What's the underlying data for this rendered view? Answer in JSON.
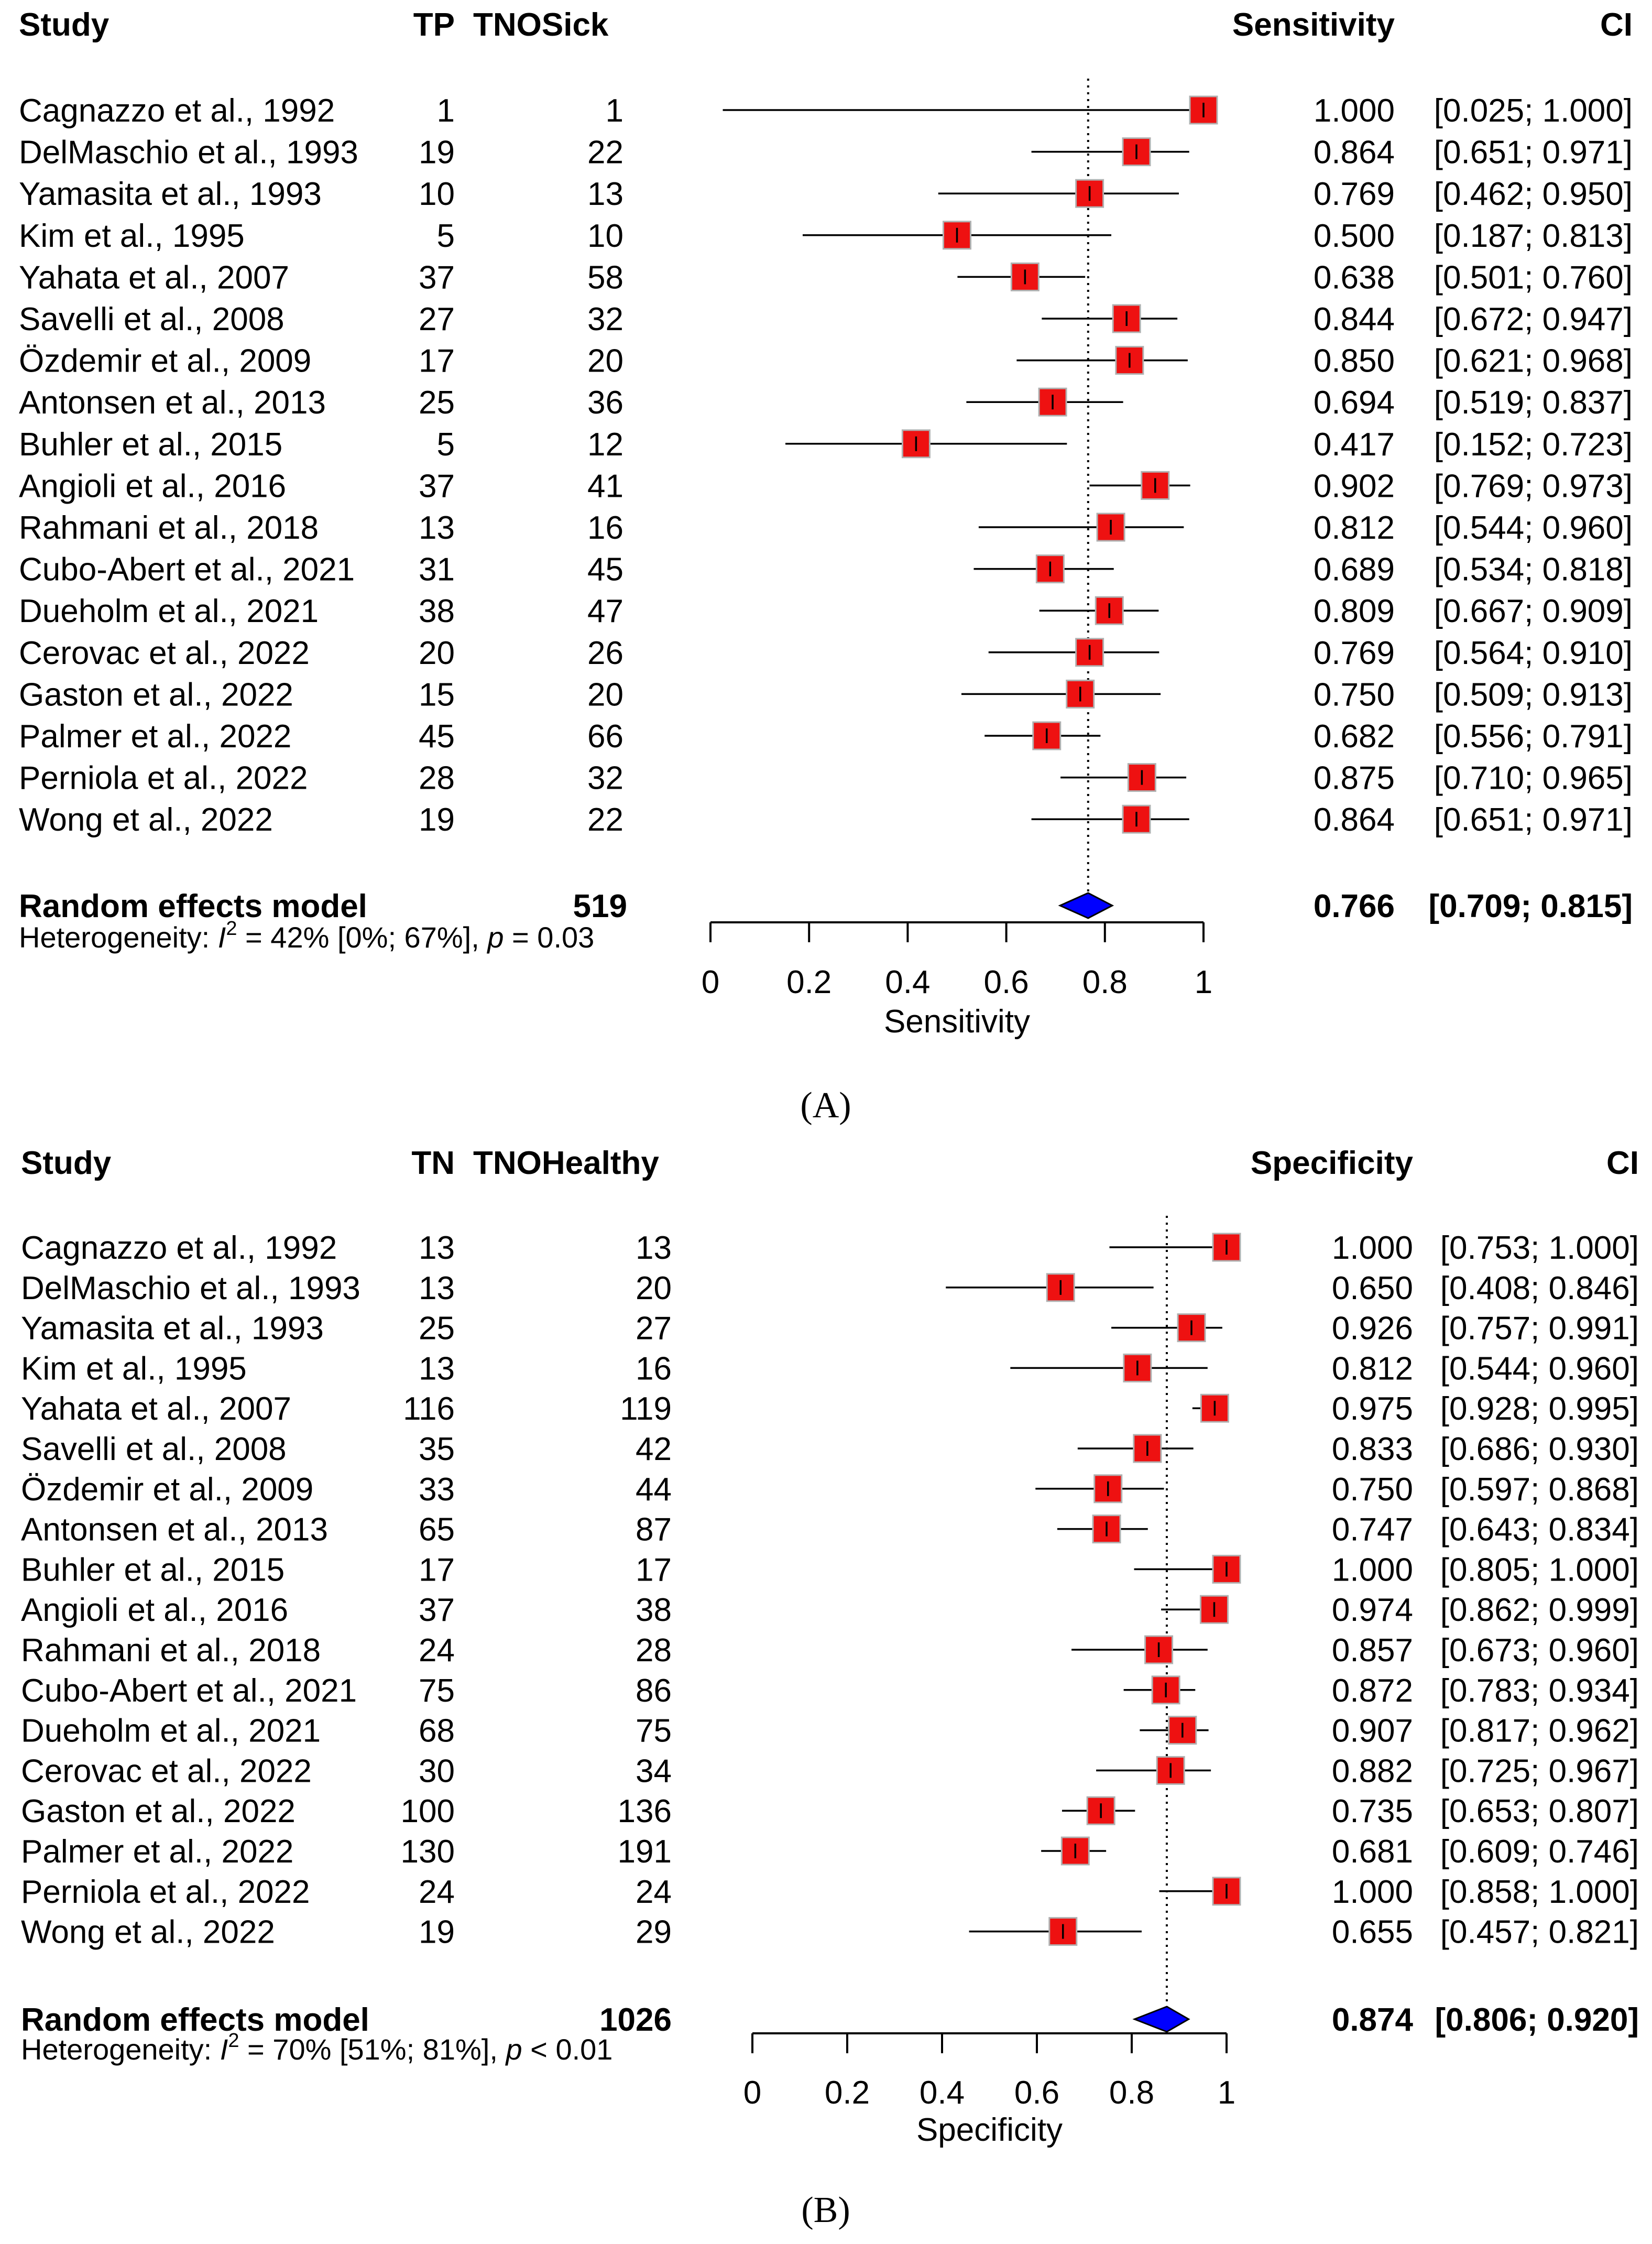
{
  "chart_data": [
    {
      "panel_label": "A",
      "type": "forest",
      "columns": {
        "study": "Study",
        "count1": "TP",
        "count2": "TNOSick",
        "estimate": "Sensitivity",
        "ci": "CI"
      },
      "studies": [
        {
          "name": "Cagnazzo et al., 1992",
          "n1": "1",
          "n2": "1",
          "est": 1.0,
          "lo": 0.025,
          "hi": 1.0,
          "est_text": "1.000",
          "ci_text": "[0.025; 1.000]"
        },
        {
          "name": "DelMaschio et al., 1993",
          "n1": "19",
          "n2": "22",
          "est": 0.864,
          "lo": 0.651,
          "hi": 0.971,
          "est_text": "0.864",
          "ci_text": "[0.651; 0.971]"
        },
        {
          "name": "Yamasita et al., 1993",
          "n1": "10",
          "n2": "13",
          "est": 0.769,
          "lo": 0.462,
          "hi": 0.95,
          "est_text": "0.769",
          "ci_text": "[0.462; 0.950]"
        },
        {
          "name": "Kim et al., 1995",
          "n1": "5",
          "n2": "10",
          "est": 0.5,
          "lo": 0.187,
          "hi": 0.813,
          "est_text": "0.500",
          "ci_text": "[0.187; 0.813]"
        },
        {
          "name": "Yahata et al., 2007",
          "n1": "37",
          "n2": "58",
          "est": 0.638,
          "lo": 0.501,
          "hi": 0.76,
          "est_text": "0.638",
          "ci_text": "[0.501; 0.760]"
        },
        {
          "name": "Savelli et al., 2008",
          "n1": "27",
          "n2": "32",
          "est": 0.844,
          "lo": 0.672,
          "hi": 0.947,
          "est_text": "0.844",
          "ci_text": "[0.672; 0.947]"
        },
        {
          "name": "Özdemir et al., 2009",
          "n1": "17",
          "n2": "20",
          "est": 0.85,
          "lo": 0.621,
          "hi": 0.968,
          "est_text": "0.850",
          "ci_text": "[0.621; 0.968]"
        },
        {
          "name": "Antonsen  et al., 2013",
          "n1": "25",
          "n2": "36",
          "est": 0.694,
          "lo": 0.519,
          "hi": 0.837,
          "est_text": "0.694",
          "ci_text": "[0.519; 0.837]"
        },
        {
          "name": "Buhler et al., 2015",
          "n1": "5",
          "n2": "12",
          "est": 0.417,
          "lo": 0.152,
          "hi": 0.723,
          "est_text": "0.417",
          "ci_text": "[0.152; 0.723]"
        },
        {
          "name": "Angioli et al., 2016",
          "n1": "37",
          "n2": "41",
          "est": 0.902,
          "lo": 0.769,
          "hi": 0.973,
          "est_text": "0.902",
          "ci_text": "[0.769; 0.973]"
        },
        {
          "name": "Rahmani et al., 2018",
          "n1": "13",
          "n2": "16",
          "est": 0.812,
          "lo": 0.544,
          "hi": 0.96,
          "est_text": "0.812",
          "ci_text": "[0.544; 0.960]"
        },
        {
          "name": "Cubo-Abert et al., 2021",
          "n1": "31",
          "n2": "45",
          "est": 0.689,
          "lo": 0.534,
          "hi": 0.818,
          "est_text": "0.689",
          "ci_text": "[0.534; 0.818]"
        },
        {
          "name": "Dueholm et al., 2021",
          "n1": "38",
          "n2": "47",
          "est": 0.809,
          "lo": 0.667,
          "hi": 0.909,
          "est_text": "0.809",
          "ci_text": "[0.667; 0.909]"
        },
        {
          "name": "Cerovac et al., 2022",
          "n1": "20",
          "n2": "26",
          "est": 0.769,
          "lo": 0.564,
          "hi": 0.91,
          "est_text": "0.769",
          "ci_text": "[0.564; 0.910]"
        },
        {
          "name": "Gaston et al., 2022",
          "n1": "15",
          "n2": "20",
          "est": 0.75,
          "lo": 0.509,
          "hi": 0.913,
          "est_text": "0.750",
          "ci_text": "[0.509; 0.913]"
        },
        {
          "name": "Palmer et al., 2022",
          "n1": "45",
          "n2": "66",
          "est": 0.682,
          "lo": 0.556,
          "hi": 0.791,
          "est_text": "0.682",
          "ci_text": "[0.556; 0.791]"
        },
        {
          "name": "Perniola et al., 2022",
          "n1": "28",
          "n2": "32",
          "est": 0.875,
          "lo": 0.71,
          "hi": 0.965,
          "est_text": "0.875",
          "ci_text": "[0.710; 0.965]"
        },
        {
          "name": "Wong et al., 2022",
          "n1": "19",
          "n2": "22",
          "est": 0.864,
          "lo": 0.651,
          "hi": 0.971,
          "est_text": "0.864",
          "ci_text": "[0.651; 0.971]"
        }
      ],
      "summary": {
        "label": "Random effects model",
        "total": "519",
        "est": 0.766,
        "lo": 0.709,
        "hi": 0.815,
        "est_text": "0.766",
        "ci_text": "[0.709; 0.815]"
      },
      "heterogeneity": {
        "prefix": "Heterogeneity: ",
        "i_letter": "I",
        "sup": "2",
        "i2_text": " = 42% [0%; 67%], ",
        "p_letter": "p",
        "p_text": " = 0.03"
      },
      "x_axis": {
        "label": "Sensitivity",
        "ticks": [
          "0",
          "0.2",
          "0.4",
          "0.6",
          "0.8",
          "1"
        ],
        "range": [
          0,
          1
        ]
      }
    },
    {
      "panel_label": "B",
      "type": "forest",
      "columns": {
        "study": "Study",
        "count1": "TN",
        "count2": "TNOHealthy",
        "estimate": "Specificity",
        "ci": "CI"
      },
      "studies": [
        {
          "name": "Cagnazzo et al., 1992",
          "n1": "13",
          "n2": "13",
          "est": 1.0,
          "lo": 0.753,
          "hi": 1.0,
          "est_text": "1.000",
          "ci_text": "[0.753; 1.000]"
        },
        {
          "name": "DelMaschio et al., 1993",
          "n1": "13",
          "n2": "20",
          "est": 0.65,
          "lo": 0.408,
          "hi": 0.846,
          "est_text": "0.650",
          "ci_text": "[0.408; 0.846]"
        },
        {
          "name": "Yamasita et al., 1993",
          "n1": "25",
          "n2": "27",
          "est": 0.926,
          "lo": 0.757,
          "hi": 0.991,
          "est_text": "0.926",
          "ci_text": "[0.757; 0.991]"
        },
        {
          "name": "Kim et al., 1995",
          "n1": "13",
          "n2": "16",
          "est": 0.812,
          "lo": 0.544,
          "hi": 0.96,
          "est_text": "0.812",
          "ci_text": "[0.544; 0.960]"
        },
        {
          "name": "Yahata et al., 2007",
          "n1": "116",
          "n2": "119",
          "est": 0.975,
          "lo": 0.928,
          "hi": 0.995,
          "est_text": "0.975",
          "ci_text": "[0.928; 0.995]"
        },
        {
          "name": "Savelli et al., 2008",
          "n1": "35",
          "n2": "42",
          "est": 0.833,
          "lo": 0.686,
          "hi": 0.93,
          "est_text": "0.833",
          "ci_text": "[0.686; 0.930]"
        },
        {
          "name": "Özdemir et al., 2009",
          "n1": "33",
          "n2": "44",
          "est": 0.75,
          "lo": 0.597,
          "hi": 0.868,
          "est_text": "0.750",
          "ci_text": "[0.597; 0.868]"
        },
        {
          "name": "Antonsen  et al., 2013",
          "n1": "65",
          "n2": "87",
          "est": 0.747,
          "lo": 0.643,
          "hi": 0.834,
          "est_text": "0.747",
          "ci_text": "[0.643; 0.834]"
        },
        {
          "name": "Buhler et al., 2015",
          "n1": "17",
          "n2": "17",
          "est": 1.0,
          "lo": 0.805,
          "hi": 1.0,
          "est_text": "1.000",
          "ci_text": "[0.805; 1.000]"
        },
        {
          "name": "Angioli et al., 2016",
          "n1": "37",
          "n2": "38",
          "est": 0.974,
          "lo": 0.862,
          "hi": 0.999,
          "est_text": "0.974",
          "ci_text": "[0.862; 0.999]"
        },
        {
          "name": "Rahmani et al., 2018",
          "n1": "24",
          "n2": "28",
          "est": 0.857,
          "lo": 0.673,
          "hi": 0.96,
          "est_text": "0.857",
          "ci_text": "[0.673; 0.960]"
        },
        {
          "name": "Cubo-Abert et al., 2021",
          "n1": "75",
          "n2": "86",
          "est": 0.872,
          "lo": 0.783,
          "hi": 0.934,
          "est_text": "0.872",
          "ci_text": "[0.783; 0.934]"
        },
        {
          "name": "Dueholm et al., 2021",
          "n1": "68",
          "n2": "75",
          "est": 0.907,
          "lo": 0.817,
          "hi": 0.962,
          "est_text": "0.907",
          "ci_text": "[0.817; 0.962]"
        },
        {
          "name": "Cerovac et al., 2022",
          "n1": "30",
          "n2": "34",
          "est": 0.882,
          "lo": 0.725,
          "hi": 0.967,
          "est_text": "0.882",
          "ci_text": "[0.725; 0.967]"
        },
        {
          "name": "Gaston et al., 2022",
          "n1": "100",
          "n2": "136",
          "est": 0.735,
          "lo": 0.653,
          "hi": 0.807,
          "est_text": "0.735",
          "ci_text": "[0.653; 0.807]"
        },
        {
          "name": "Palmer et al., 2022",
          "n1": "130",
          "n2": "191",
          "est": 0.681,
          "lo": 0.609,
          "hi": 0.746,
          "est_text": "0.681",
          "ci_text": "[0.609; 0.746]"
        },
        {
          "name": "Perniola et al., 2022",
          "n1": "24",
          "n2": "24",
          "est": 1.0,
          "lo": 0.858,
          "hi": 1.0,
          "est_text": "1.000",
          "ci_text": "[0.858; 1.000]"
        },
        {
          "name": "Wong et al., 2022",
          "n1": "19",
          "n2": "29",
          "est": 0.655,
          "lo": 0.457,
          "hi": 0.821,
          "est_text": "0.655",
          "ci_text": "[0.457; 0.821]"
        }
      ],
      "summary": {
        "label": "Random effects model",
        "total": "1026",
        "est": 0.874,
        "lo": 0.806,
        "hi": 0.92,
        "est_text": "0.874",
        "ci_text": "[0.806; 0.920]"
      },
      "heterogeneity": {
        "prefix": "Heterogeneity: ",
        "i_letter": "I",
        "sup": "2",
        "i2_text": " = 70% [51%; 81%], ",
        "p_letter": "p",
        "p_text": " < 0.01"
      },
      "x_axis": {
        "label": "Specificity",
        "ticks": [
          "0",
          "0.2",
          "0.4",
          "0.6",
          "0.8",
          "1"
        ],
        "range": [
          0,
          1
        ]
      }
    }
  ],
  "colors": {
    "box_fill": "#ee1111",
    "box_stroke": "#b0b0b0",
    "diamond_fill": "#0000ff",
    "line": "#000000"
  },
  "panel_labels": [
    "(A)",
    "(B)"
  ]
}
